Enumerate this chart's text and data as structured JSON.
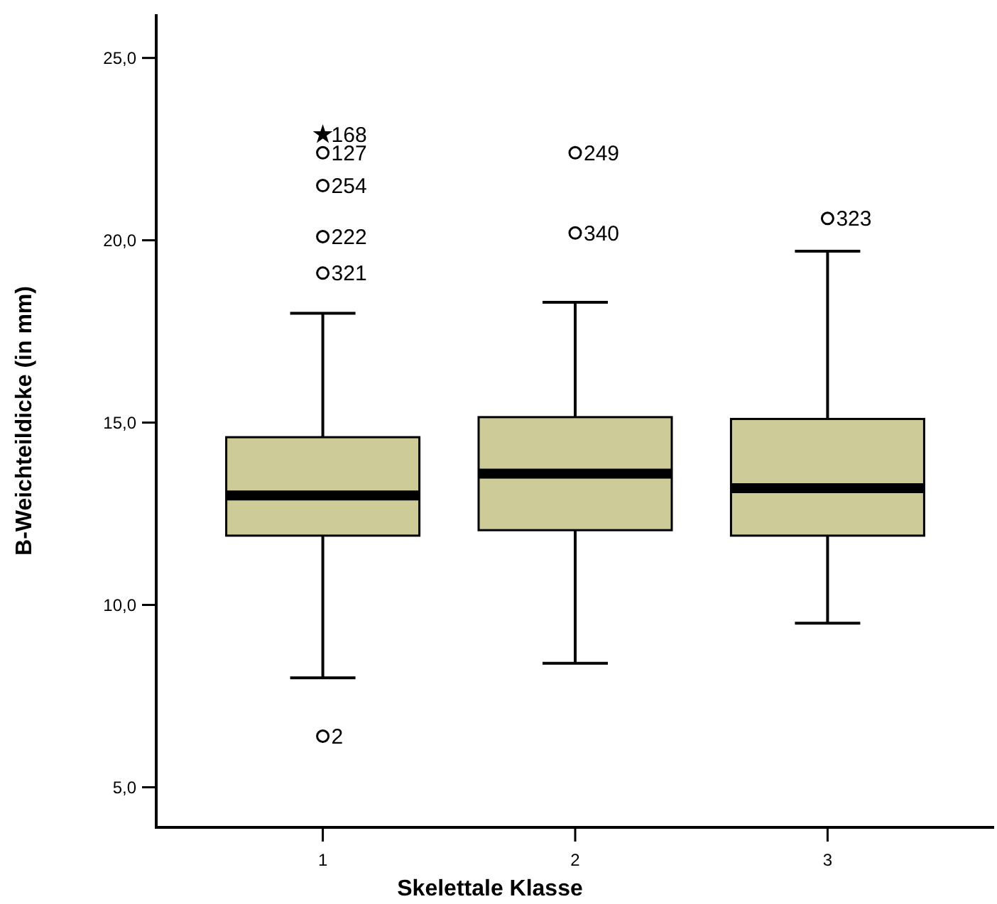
{
  "chart_data": {
    "type": "box",
    "xlabel": "Skelettale Klasse",
    "ylabel": "B-Weichteildicke (in mm)",
    "categories": [
      "1",
      "2",
      "3"
    ],
    "color": "#cdcb98",
    "boxes": [
      {
        "low": 8.0,
        "q1": 11.9,
        "median": 13.0,
        "q3": 14.6,
        "high": 18.0
      },
      {
        "low": 8.4,
        "q1": 12.05,
        "median": 13.6,
        "q3": 15.15,
        "high": 18.3
      },
      {
        "low": 9.5,
        "q1": 11.9,
        "median": 13.2,
        "q3": 15.1,
        "high": 19.7
      }
    ],
    "series": [
      {
        "type": "scatter",
        "marker": "star",
        "color": "#000000",
        "x": [
          "1"
        ],
        "values": [
          22.9
        ]
      },
      {
        "type": "scatter",
        "marker": "circle",
        "color": "#000000",
        "x": [
          "1",
          "1",
          "1",
          "1",
          "1",
          "2",
          "2",
          "3"
        ],
        "values": [
          22.4,
          21.5,
          20.1,
          19.1,
          6.4,
          22.4,
          20.2,
          20.6
        ]
      }
    ],
    "ylim": [
      3.9,
      26.2
    ],
    "yticks": [
      {
        "value": 5,
        "label": "5,0"
      },
      {
        "value": 10,
        "label": "10,0"
      },
      {
        "value": 15,
        "label": "15,0"
      },
      {
        "value": 20,
        "label": "20,0"
      },
      {
        "value": 25,
        "label": "25,0"
      }
    ],
    "grid": false,
    "annotations": [
      {
        "text": "168",
        "x": "1",
        "y": 22.9
      },
      {
        "text": "127",
        "x": "1",
        "y": 22.4
      },
      {
        "text": "254",
        "x": "1",
        "y": 21.5
      },
      {
        "text": "222",
        "x": "1",
        "y": 20.1
      },
      {
        "text": "321",
        "x": "1",
        "y": 19.1
      },
      {
        "text": "2",
        "x": "1",
        "y": 6.4
      },
      {
        "text": "249",
        "x": "2",
        "y": 22.4
      },
      {
        "text": "340",
        "x": "2",
        "y": 20.2
      },
      {
        "text": "323",
        "x": "3",
        "y": 20.6
      }
    ]
  }
}
